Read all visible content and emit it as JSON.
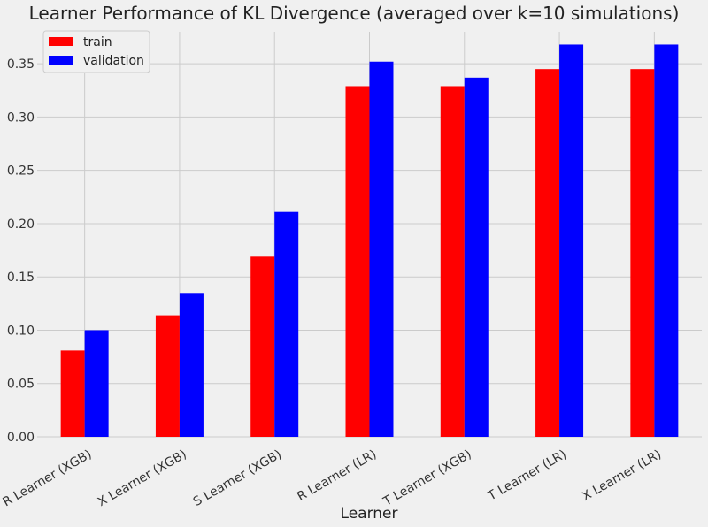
{
  "chart_data": {
    "type": "bar",
    "title": "Learner Performance of KL Divergence (averaged over k=10 simulations)",
    "xlabel": "Learner",
    "ylabel": "",
    "categories": [
      "R Learner (XGB)",
      "X Learner (XGB)",
      "S Learner (XGB)",
      "R Learner (LR)",
      "T Learner (XGB)",
      "T Learner (LR)",
      "X Learner (LR)"
    ],
    "series": [
      {
        "name": "train",
        "color": "#ff0000",
        "values": [
          0.081,
          0.114,
          0.169,
          0.329,
          0.329,
          0.345,
          0.345
        ]
      },
      {
        "name": "validation",
        "color": "#0000ff",
        "values": [
          0.1,
          0.135,
          0.211,
          0.352,
          0.337,
          0.368,
          0.368
        ]
      }
    ],
    "ylim": [
      0,
      0.38
    ],
    "yticks": [
      "0.00",
      "0.05",
      "0.10",
      "0.15",
      "0.20",
      "0.25",
      "0.30",
      "0.35"
    ],
    "grid": true,
    "legend_position": "top-left",
    "background_color": "#f0f0f0",
    "grid_color": "#cbcbcb"
  }
}
